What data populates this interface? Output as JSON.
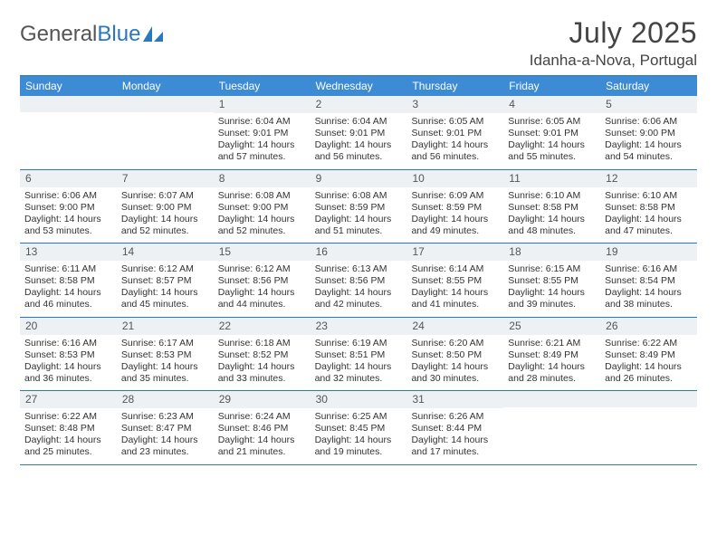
{
  "logo": {
    "text1": "General",
    "text2": "Blue"
  },
  "title": "July 2025",
  "location": "Idanha-a-Nova, Portugal",
  "colors": {
    "header_bg": "#3d8bd4",
    "rule": "#2a77c2",
    "daybar_bg": "#eef1f4",
    "text": "#333333"
  },
  "dow": [
    "Sunday",
    "Monday",
    "Tuesday",
    "Wednesday",
    "Thursday",
    "Friday",
    "Saturday"
  ],
  "weeks": [
    [
      {
        "n": "",
        "lines": []
      },
      {
        "n": "",
        "lines": []
      },
      {
        "n": "1",
        "lines": [
          "Sunrise: 6:04 AM",
          "Sunset: 9:01 PM",
          "Daylight: 14 hours",
          "and 57 minutes."
        ]
      },
      {
        "n": "2",
        "lines": [
          "Sunrise: 6:04 AM",
          "Sunset: 9:01 PM",
          "Daylight: 14 hours",
          "and 56 minutes."
        ]
      },
      {
        "n": "3",
        "lines": [
          "Sunrise: 6:05 AM",
          "Sunset: 9:01 PM",
          "Daylight: 14 hours",
          "and 56 minutes."
        ]
      },
      {
        "n": "4",
        "lines": [
          "Sunrise: 6:05 AM",
          "Sunset: 9:01 PM",
          "Daylight: 14 hours",
          "and 55 minutes."
        ]
      },
      {
        "n": "5",
        "lines": [
          "Sunrise: 6:06 AM",
          "Sunset: 9:00 PM",
          "Daylight: 14 hours",
          "and 54 minutes."
        ]
      }
    ],
    [
      {
        "n": "6",
        "lines": [
          "Sunrise: 6:06 AM",
          "Sunset: 9:00 PM",
          "Daylight: 14 hours",
          "and 53 minutes."
        ]
      },
      {
        "n": "7",
        "lines": [
          "Sunrise: 6:07 AM",
          "Sunset: 9:00 PM",
          "Daylight: 14 hours",
          "and 52 minutes."
        ]
      },
      {
        "n": "8",
        "lines": [
          "Sunrise: 6:08 AM",
          "Sunset: 9:00 PM",
          "Daylight: 14 hours",
          "and 52 minutes."
        ]
      },
      {
        "n": "9",
        "lines": [
          "Sunrise: 6:08 AM",
          "Sunset: 8:59 PM",
          "Daylight: 14 hours",
          "and 51 minutes."
        ]
      },
      {
        "n": "10",
        "lines": [
          "Sunrise: 6:09 AM",
          "Sunset: 8:59 PM",
          "Daylight: 14 hours",
          "and 49 minutes."
        ]
      },
      {
        "n": "11",
        "lines": [
          "Sunrise: 6:10 AM",
          "Sunset: 8:58 PM",
          "Daylight: 14 hours",
          "and 48 minutes."
        ]
      },
      {
        "n": "12",
        "lines": [
          "Sunrise: 6:10 AM",
          "Sunset: 8:58 PM",
          "Daylight: 14 hours",
          "and 47 minutes."
        ]
      }
    ],
    [
      {
        "n": "13",
        "lines": [
          "Sunrise: 6:11 AM",
          "Sunset: 8:58 PM",
          "Daylight: 14 hours",
          "and 46 minutes."
        ]
      },
      {
        "n": "14",
        "lines": [
          "Sunrise: 6:12 AM",
          "Sunset: 8:57 PM",
          "Daylight: 14 hours",
          "and 45 minutes."
        ]
      },
      {
        "n": "15",
        "lines": [
          "Sunrise: 6:12 AM",
          "Sunset: 8:56 PM",
          "Daylight: 14 hours",
          "and 44 minutes."
        ]
      },
      {
        "n": "16",
        "lines": [
          "Sunrise: 6:13 AM",
          "Sunset: 8:56 PM",
          "Daylight: 14 hours",
          "and 42 minutes."
        ]
      },
      {
        "n": "17",
        "lines": [
          "Sunrise: 6:14 AM",
          "Sunset: 8:55 PM",
          "Daylight: 14 hours",
          "and 41 minutes."
        ]
      },
      {
        "n": "18",
        "lines": [
          "Sunrise: 6:15 AM",
          "Sunset: 8:55 PM",
          "Daylight: 14 hours",
          "and 39 minutes."
        ]
      },
      {
        "n": "19",
        "lines": [
          "Sunrise: 6:16 AM",
          "Sunset: 8:54 PM",
          "Daylight: 14 hours",
          "and 38 minutes."
        ]
      }
    ],
    [
      {
        "n": "20",
        "lines": [
          "Sunrise: 6:16 AM",
          "Sunset: 8:53 PM",
          "Daylight: 14 hours",
          "and 36 minutes."
        ]
      },
      {
        "n": "21",
        "lines": [
          "Sunrise: 6:17 AM",
          "Sunset: 8:53 PM",
          "Daylight: 14 hours",
          "and 35 minutes."
        ]
      },
      {
        "n": "22",
        "lines": [
          "Sunrise: 6:18 AM",
          "Sunset: 8:52 PM",
          "Daylight: 14 hours",
          "and 33 minutes."
        ]
      },
      {
        "n": "23",
        "lines": [
          "Sunrise: 6:19 AM",
          "Sunset: 8:51 PM",
          "Daylight: 14 hours",
          "and 32 minutes."
        ]
      },
      {
        "n": "24",
        "lines": [
          "Sunrise: 6:20 AM",
          "Sunset: 8:50 PM",
          "Daylight: 14 hours",
          "and 30 minutes."
        ]
      },
      {
        "n": "25",
        "lines": [
          "Sunrise: 6:21 AM",
          "Sunset: 8:49 PM",
          "Daylight: 14 hours",
          "and 28 minutes."
        ]
      },
      {
        "n": "26",
        "lines": [
          "Sunrise: 6:22 AM",
          "Sunset: 8:49 PM",
          "Daylight: 14 hours",
          "and 26 minutes."
        ]
      }
    ],
    [
      {
        "n": "27",
        "lines": [
          "Sunrise: 6:22 AM",
          "Sunset: 8:48 PM",
          "Daylight: 14 hours",
          "and 25 minutes."
        ]
      },
      {
        "n": "28",
        "lines": [
          "Sunrise: 6:23 AM",
          "Sunset: 8:47 PM",
          "Daylight: 14 hours",
          "and 23 minutes."
        ]
      },
      {
        "n": "29",
        "lines": [
          "Sunrise: 6:24 AM",
          "Sunset: 8:46 PM",
          "Daylight: 14 hours",
          "and 21 minutes."
        ]
      },
      {
        "n": "30",
        "lines": [
          "Sunrise: 6:25 AM",
          "Sunset: 8:45 PM",
          "Daylight: 14 hours",
          "and 19 minutes."
        ]
      },
      {
        "n": "31",
        "lines": [
          "Sunrise: 6:26 AM",
          "Sunset: 8:44 PM",
          "Daylight: 14 hours",
          "and 17 minutes."
        ]
      },
      {
        "n": "",
        "lines": []
      },
      {
        "n": "",
        "lines": []
      }
    ]
  ]
}
